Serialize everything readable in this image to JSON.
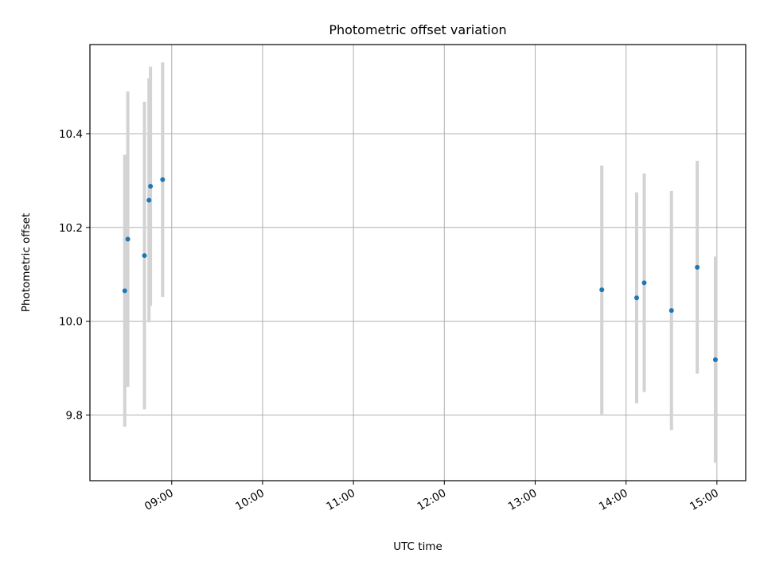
{
  "chart_data": {
    "type": "scatter",
    "title": "Photometric offset variation",
    "xlabel": "UTC time",
    "ylabel": "Photometric offset",
    "x_ticks": [
      "09:00",
      "10:00",
      "11:00",
      "12:00",
      "13:00",
      "14:00",
      "15:00"
    ],
    "y_ticks": [
      "9.8",
      "10.0",
      "10.2",
      "10.4"
    ],
    "xlim": [
      "08:06",
      "15:19"
    ],
    "ylim": [
      9.66,
      10.59
    ],
    "grid": true,
    "point_color": "#1f77b4",
    "errorbar_color": "#d3d3d3",
    "points": [
      {
        "time": "08:29",
        "y": 10.065,
        "yerr": 0.29
      },
      {
        "time": "08:31",
        "y": 10.175,
        "yerr": 0.315
      },
      {
        "time": "08:42",
        "y": 10.14,
        "yerr": 0.328
      },
      {
        "time": "08:45",
        "y": 10.258,
        "yerr": 0.26
      },
      {
        "time": "08:46",
        "y": 10.288,
        "yerr": 0.255
      },
      {
        "time": "08:54",
        "y": 10.302,
        "yerr": 0.25
      },
      {
        "time": "13:44",
        "y": 10.067,
        "yerr": 0.265
      },
      {
        "time": "14:07",
        "y": 10.05,
        "yerr": 0.225
      },
      {
        "time": "14:12",
        "y": 10.082,
        "yerr": 0.233
      },
      {
        "time": "14:30",
        "y": 10.023,
        "yerr": 0.255
      },
      {
        "time": "14:47",
        "y": 10.115,
        "yerr": 0.227
      },
      {
        "time": "14:59",
        "y": 9.918,
        "yerr": 0.22
      }
    ]
  }
}
